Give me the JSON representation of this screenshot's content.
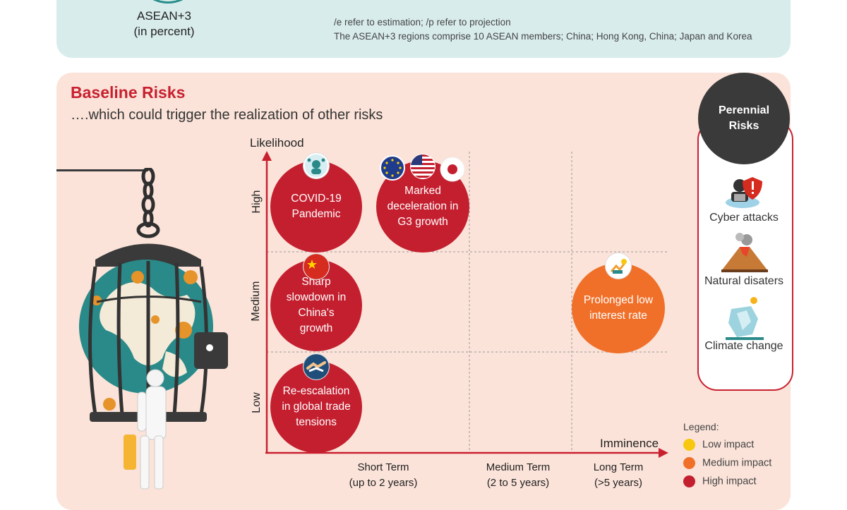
{
  "header": {
    "region_label": "ASEAN+3",
    "unit_label": "(in percent)",
    "note_1": "/e refer to estimation; /p refer to projection",
    "note_2": "The ASEAN+3 regions comprise 10 ASEAN members; China; Hong Kong, China; Japan and Korea"
  },
  "section": {
    "title": "Baseline Risks",
    "subtitle": "….which could trigger the realization of other risks"
  },
  "matrix": {
    "y_axis_title": "Likelihood",
    "x_axis_title": "Imminence",
    "y_levels": [
      "High",
      "Medium",
      "Low"
    ],
    "x_terms": [
      {
        "name": "Short Term",
        "range": "(up to 2 years)"
      },
      {
        "name": "Medium Term",
        "range": "(2 to 5 years)"
      },
      {
        "name": "Long Term",
        "range": "(>5 years)"
      }
    ],
    "risks": [
      {
        "text": "COVID-19 Pandemic",
        "impact": "High impact",
        "likelihood": "High",
        "imminence": "Short Term",
        "icon": "virus-person-icon"
      },
      {
        "text": "Marked deceleration in G3 growth",
        "impact": "High impact",
        "likelihood": "High",
        "imminence": "Short Term",
        "icon": "eu-us-japan-flags-icon"
      },
      {
        "text": "Sharp slowdown in China's growth",
        "impact": "High impact",
        "likelihood": "Medium",
        "imminence": "Short Term",
        "icon": "china-flag-icon"
      },
      {
        "text": "Re-escalation in global trade tensions",
        "impact": "High impact",
        "likelihood": "Low",
        "imminence": "Short Term",
        "icon": "handshake-icon"
      },
      {
        "text": "Prolonged low interest rate",
        "impact": "Medium impact",
        "likelihood": "Medium",
        "imminence": "Long Term",
        "icon": "interest-rate-icon"
      }
    ]
  },
  "perennial": {
    "title": "Perennial Risks",
    "items": [
      "Cyber attacks",
      "Natural disaters",
      "Climate change"
    ]
  },
  "legend": {
    "title": "Legend:",
    "items": [
      {
        "label": "Low impact",
        "color": "#f7c80f"
      },
      {
        "label": "Medium impact",
        "color": "#f0702a"
      },
      {
        "label": "High impact",
        "color": "#c41f2f"
      }
    ]
  }
}
